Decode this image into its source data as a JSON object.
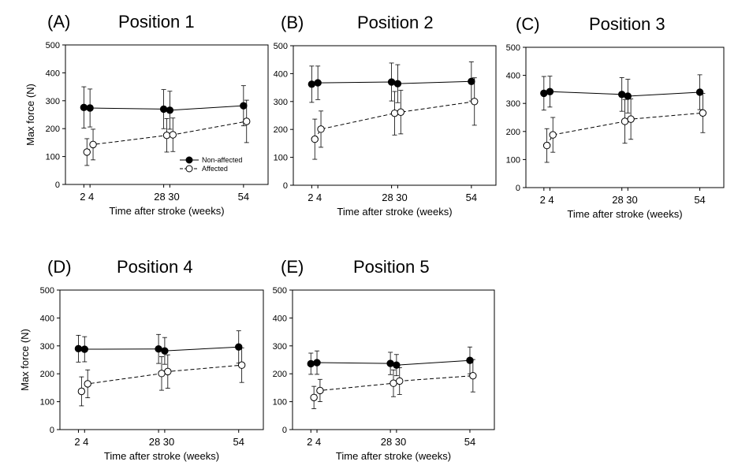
{
  "chart_data": [
    {
      "type": "line",
      "panel_label": "(A)",
      "title": "Position 1",
      "xlabel": "Time after stroke (weeks)",
      "ylabel": "Max force (N)",
      "ylim": [
        0,
        500
      ],
      "yticks": [
        0,
        100,
        200,
        300,
        400,
        500
      ],
      "xticks": [
        2,
        4,
        28,
        30,
        54
      ],
      "xtick_labels": [
        "2 4",
        "28 30",
        "54"
      ],
      "legend": {
        "position": "inside-lower-right",
        "entries": [
          "Non-affected",
          "Affected"
        ]
      },
      "series": [
        {
          "name": "Non-affected",
          "marker": "filled-circle",
          "line": "solid",
          "x": [
            2,
            4,
            28,
            30,
            54
          ],
          "y": [
            276,
            274,
            270,
            266,
            282
          ],
          "err": [
            74,
            68,
            70,
            68,
            72
          ]
        },
        {
          "name": "Affected",
          "marker": "open-circle",
          "line": "dashed",
          "x": [
            3,
            5,
            29,
            31,
            55
          ],
          "y": [
            116,
            143,
            176,
            178,
            226
          ],
          "err": [
            48,
            55,
            60,
            60,
            76
          ]
        }
      ]
    },
    {
      "type": "line",
      "panel_label": "(B)",
      "title": "Position 2",
      "xlabel": "Time after stroke (weeks)",
      "ylabel": "",
      "ylim": [
        0,
        500
      ],
      "yticks": [
        0,
        100,
        200,
        300,
        400,
        500
      ],
      "xticks": [
        2,
        4,
        28,
        30,
        54
      ],
      "xtick_labels": [
        "2 4",
        "28 30",
        "54"
      ],
      "series": [
        {
          "name": "Non-affected",
          "marker": "filled-circle",
          "line": "solid",
          "x": [
            2,
            4,
            28,
            30,
            54
          ],
          "y": [
            362,
            367,
            370,
            364,
            372
          ],
          "err": [
            65,
            60,
            68,
            68,
            70
          ]
        },
        {
          "name": "Affected",
          "marker": "open-circle",
          "line": "dashed",
          "x": [
            3,
            5,
            29,
            31,
            55
          ],
          "y": [
            165,
            201,
            258,
            262,
            300
          ],
          "err": [
            72,
            65,
            78,
            78,
            85
          ]
        }
      ]
    },
    {
      "type": "line",
      "panel_label": "(C)",
      "title": "Position 3",
      "xlabel": "Time after stroke (weeks)",
      "ylabel": "",
      "ylim": [
        0,
        500
      ],
      "yticks": [
        0,
        100,
        200,
        300,
        400,
        500
      ],
      "xticks": [
        2,
        4,
        28,
        30,
        54
      ],
      "xtick_labels": [
        "2 4",
        "28 30",
        "54"
      ],
      "series": [
        {
          "name": "Non-affected",
          "marker": "filled-circle",
          "line": "solid",
          "x": [
            2,
            4,
            28,
            30,
            54
          ],
          "y": [
            336,
            342,
            332,
            326,
            340
          ],
          "err": [
            60,
            55,
            60,
            60,
            62
          ]
        },
        {
          "name": "Affected",
          "marker": "open-circle",
          "line": "dashed",
          "x": [
            3,
            5,
            29,
            31,
            55
          ],
          "y": [
            150,
            188,
            236,
            244,
            266
          ],
          "err": [
            60,
            62,
            78,
            72,
            70
          ]
        }
      ]
    },
    {
      "type": "line",
      "panel_label": "(D)",
      "title": "Position 4",
      "xlabel": "Time after stroke (weeks)",
      "ylabel": "Max force (N)",
      "ylim": [
        0,
        500
      ],
      "yticks": [
        0,
        100,
        200,
        300,
        400,
        500
      ],
      "xticks": [
        2,
        4,
        28,
        30,
        54
      ],
      "xtick_labels": [
        "2 4",
        "28 30",
        "54"
      ],
      "series": [
        {
          "name": "Non-affected",
          "marker": "filled-circle",
          "line": "solid",
          "x": [
            2,
            4,
            28,
            30,
            54
          ],
          "y": [
            290,
            288,
            289,
            282,
            296
          ],
          "err": [
            48,
            45,
            52,
            48,
            58
          ]
        },
        {
          "name": "Affected",
          "marker": "open-circle",
          "line": "dashed",
          "x": [
            3,
            5,
            29,
            31,
            55
          ],
          "y": [
            137,
            164,
            201,
            208,
            231
          ],
          "err": [
            52,
            50,
            60,
            60,
            62
          ]
        }
      ]
    },
    {
      "type": "line",
      "panel_label": "(E)",
      "title": "Position 5",
      "xlabel": "Time after stroke (weeks)",
      "ylabel": "",
      "ylim": [
        0,
        500
      ],
      "yticks": [
        0,
        100,
        200,
        300,
        400,
        500
      ],
      "xticks": [
        2,
        4,
        28,
        30,
        54
      ],
      "xtick_labels": [
        "2 4",
        "28 30",
        "54"
      ],
      "series": [
        {
          "name": "Non-affected",
          "marker": "filled-circle",
          "line": "solid",
          "x": [
            2,
            4,
            28,
            30,
            54
          ],
          "y": [
            236,
            240,
            237,
            231,
            248
          ],
          "err": [
            38,
            42,
            40,
            38,
            48
          ]
        },
        {
          "name": "Affected",
          "marker": "open-circle",
          "line": "dashed",
          "x": [
            3,
            5,
            29,
            31,
            55
          ],
          "y": [
            115,
            140,
            166,
            174,
            193
          ],
          "err": [
            40,
            40,
            48,
            48,
            58
          ]
        }
      ]
    }
  ]
}
